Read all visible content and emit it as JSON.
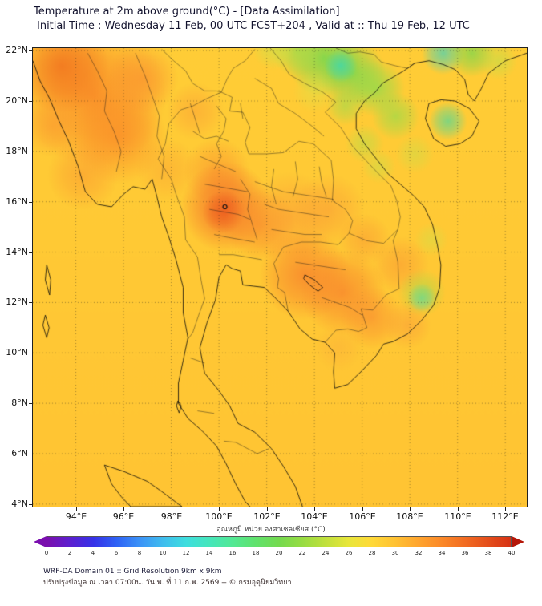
{
  "header": {
    "title_line1": "Temperature at 2m above ground(°C) - [Data Assimilation]",
    "title_line2": "Initial Time : Wednesday 11 Feb, 00 UTC FCST+204 , Valid at :: Thu 19 Feb, 12 UTC"
  },
  "map": {
    "lon_min": 92.2,
    "lon_max": 112.9,
    "lat_min": 3.9,
    "lat_max": 22.1,
    "lat_ticks": [
      {
        "label": "22°N",
        "value": 22
      },
      {
        "label": "20°N",
        "value": 20
      },
      {
        "label": "18°N",
        "value": 18
      },
      {
        "label": "16°N",
        "value": 16
      },
      {
        "label": "14°N",
        "value": 14
      },
      {
        "label": "12°N",
        "value": 12
      },
      {
        "label": "10°N",
        "value": 10
      },
      {
        "label": "8°N",
        "value": 8
      },
      {
        "label": "6°N",
        "value": 6
      },
      {
        "label": "4°N",
        "value": 4
      }
    ],
    "lon_ticks": [
      {
        "label": "94°E",
        "value": 94
      },
      {
        "label": "96°E",
        "value": 96
      },
      {
        "label": "98°E",
        "value": 98
      },
      {
        "label": "100°E",
        "value": 100
      },
      {
        "label": "102°E",
        "value": 102
      },
      {
        "label": "104°E",
        "value": 104
      },
      {
        "label": "106°E",
        "value": 106
      },
      {
        "label": "108°E",
        "value": 108
      },
      {
        "label": "110°E",
        "value": 110
      },
      {
        "label": "112°E",
        "value": 112
      }
    ],
    "marker": {
      "lon": 100.25,
      "lat": 15.8
    },
    "field": {
      "base_top": "#ffcd36",
      "base_bottom": "#ffc433",
      "blobs": [
        {
          "lon": 94.8,
          "lat": 20.2,
          "r": 3.0,
          "c": "#fa8c28",
          "a": 0.9
        },
        {
          "lon": 93.4,
          "lat": 21.4,
          "r": 2.0,
          "c": "#f1701e",
          "a": 0.8
        },
        {
          "lon": 95.8,
          "lat": 18.6,
          "r": 2.0,
          "c": "#fa8c28",
          "a": 0.75
        },
        {
          "lon": 94.3,
          "lat": 17.1,
          "r": 1.5,
          "c": "#fb9a30",
          "a": 0.6
        },
        {
          "lon": 96.8,
          "lat": 20.9,
          "r": 1.5,
          "c": "#fa9030",
          "a": 0.65
        },
        {
          "lon": 93.0,
          "lat": 19.0,
          "r": 1.3,
          "c": "#fb9a30",
          "a": 0.6
        },
        {
          "lon": 97.8,
          "lat": 17.3,
          "r": 1.3,
          "c": "#fba433",
          "a": 0.5
        },
        {
          "lon": 99.9,
          "lat": 17.2,
          "r": 1.4,
          "c": "#fa8f2e",
          "a": 0.6
        },
        {
          "lon": 100.3,
          "lat": 15.8,
          "r": 1.9,
          "c": "#f5762a",
          "a": 0.95
        },
        {
          "lon": 100.2,
          "lat": 15.6,
          "r": 0.9,
          "c": "#ed5f1f",
          "a": 0.85
        },
        {
          "lon": 101.7,
          "lat": 15.1,
          "r": 1.5,
          "c": "#f98a2c",
          "a": 0.7
        },
        {
          "lon": 103.0,
          "lat": 15.4,
          "r": 1.9,
          "c": "#fb9c35",
          "a": 0.6
        },
        {
          "lon": 104.6,
          "lat": 15.7,
          "r": 1.5,
          "c": "#fb9c35",
          "a": 0.55
        },
        {
          "lon": 103.6,
          "lat": 13.1,
          "r": 1.9,
          "c": "#f8832c",
          "a": 0.8
        },
        {
          "lon": 105.2,
          "lat": 12.4,
          "r": 1.8,
          "c": "#f8832c",
          "a": 0.75
        },
        {
          "lon": 106.4,
          "lat": 11.4,
          "r": 1.3,
          "c": "#fa9130",
          "a": 0.7
        },
        {
          "lon": 107.6,
          "lat": 13.5,
          "r": 1.2,
          "c": "#fa9733",
          "a": 0.55
        },
        {
          "lon": 106.1,
          "lat": 14.5,
          "r": 1.1,
          "c": "#fa9733",
          "a": 0.5
        },
        {
          "lon": 99.0,
          "lat": 19.6,
          "r": 1.2,
          "c": "#fb9c35",
          "a": 0.5
        },
        {
          "lon": 107.9,
          "lat": 11.1,
          "r": 1.0,
          "c": "#fb9d38",
          "a": 0.55
        },
        {
          "lon": 105.0,
          "lat": 10.2,
          "r": 1.0,
          "c": "#fbaa3a",
          "a": 0.4
        },
        {
          "lon": 104.4,
          "lat": 21.7,
          "r": 1.6,
          "c": "#7cd84e",
          "a": 0.9
        },
        {
          "lon": 105.6,
          "lat": 21.1,
          "r": 1.4,
          "c": "#7cd84e",
          "a": 0.85
        },
        {
          "lon": 105.1,
          "lat": 21.4,
          "r": 0.7,
          "c": "#3ed8ae",
          "a": 0.8
        },
        {
          "lon": 106.6,
          "lat": 20.5,
          "r": 1.2,
          "c": "#8fdc4c",
          "a": 0.75
        },
        {
          "lon": 103.3,
          "lat": 22.0,
          "r": 1.1,
          "c": "#a5dc4a",
          "a": 0.75
        },
        {
          "lon": 102.3,
          "lat": 22.1,
          "r": 0.9,
          "c": "#c9e24a",
          "a": 0.6
        },
        {
          "lon": 107.4,
          "lat": 19.4,
          "r": 1.0,
          "c": "#99dc4a",
          "a": 0.7
        },
        {
          "lon": 105.3,
          "lat": 19.8,
          "r": 0.8,
          "c": "#9ddc4c",
          "a": 0.6
        },
        {
          "lon": 106.1,
          "lat": 18.3,
          "r": 0.8,
          "c": "#b3de4a",
          "a": 0.55
        },
        {
          "lon": 106.7,
          "lat": 17.4,
          "r": 0.7,
          "c": "#c3e04a",
          "a": 0.5
        },
        {
          "lon": 108.2,
          "lat": 17.9,
          "r": 0.8,
          "c": "#c3e04a",
          "a": 0.45
        },
        {
          "lon": 109.4,
          "lat": 21.9,
          "r": 0.9,
          "c": "#55d2ae",
          "a": 0.8
        },
        {
          "lon": 110.6,
          "lat": 21.9,
          "r": 1.0,
          "c": "#7cd84e",
          "a": 0.75
        },
        {
          "lon": 111.7,
          "lat": 21.6,
          "r": 0.8,
          "c": "#bce04a",
          "a": 0.55
        },
        {
          "lon": 109.6,
          "lat": 19.2,
          "r": 0.8,
          "c": "#58d896",
          "a": 0.75
        },
        {
          "lon": 108.5,
          "lat": 12.2,
          "r": 0.6,
          "c": "#49d8c2",
          "a": 0.8
        },
        {
          "lon": 108.5,
          "lat": 12.4,
          "r": 1.0,
          "c": "#9ddc4c",
          "a": 0.55
        },
        {
          "lon": 108.9,
          "lat": 14.5,
          "r": 0.7,
          "c": "#cde24a",
          "a": 0.45
        },
        {
          "lon": 104.0,
          "lat": 20.4,
          "r": 0.9,
          "c": "#d9e44a",
          "a": 0.45
        }
      ]
    }
  },
  "colorbar": {
    "label": "อุณหภูมิ หน่วย องศาเซลเซียส (°C)",
    "tick_labels": [
      "0",
      "2",
      "4",
      "6",
      "8",
      "10",
      "12",
      "14",
      "16",
      "18",
      "20",
      "22",
      "24",
      "26",
      "28",
      "30",
      "32",
      "34",
      "36",
      "38",
      "40"
    ],
    "stop_colors": [
      "#7a0fae",
      "#5b1fd0",
      "#3632e8",
      "#2e62f5",
      "#3b93f7",
      "#3fbdee",
      "#3edede",
      "#45e6bb",
      "#52e894",
      "#60e26c",
      "#74da4f",
      "#97dc42",
      "#c0e03c",
      "#e8e63a",
      "#ffd938",
      "#ffc233",
      "#ffa52e",
      "#fb8929",
      "#f26c22",
      "#e54f1b",
      "#d63214"
    ],
    "left_arrow_color": "#7a0fae",
    "right_arrow_color": "#b51708"
  },
  "footer": {
    "line1": "WRF-DA Domain 01 :: Grid Resolution 9km x 9km",
    "line2": "ปรับปรุงข้อมูล ณ เวลา 07:00น. วัน พ. ที่ 11 ก.พ. 2569 -- © กรมอุตุนิยมวิทยา"
  }
}
